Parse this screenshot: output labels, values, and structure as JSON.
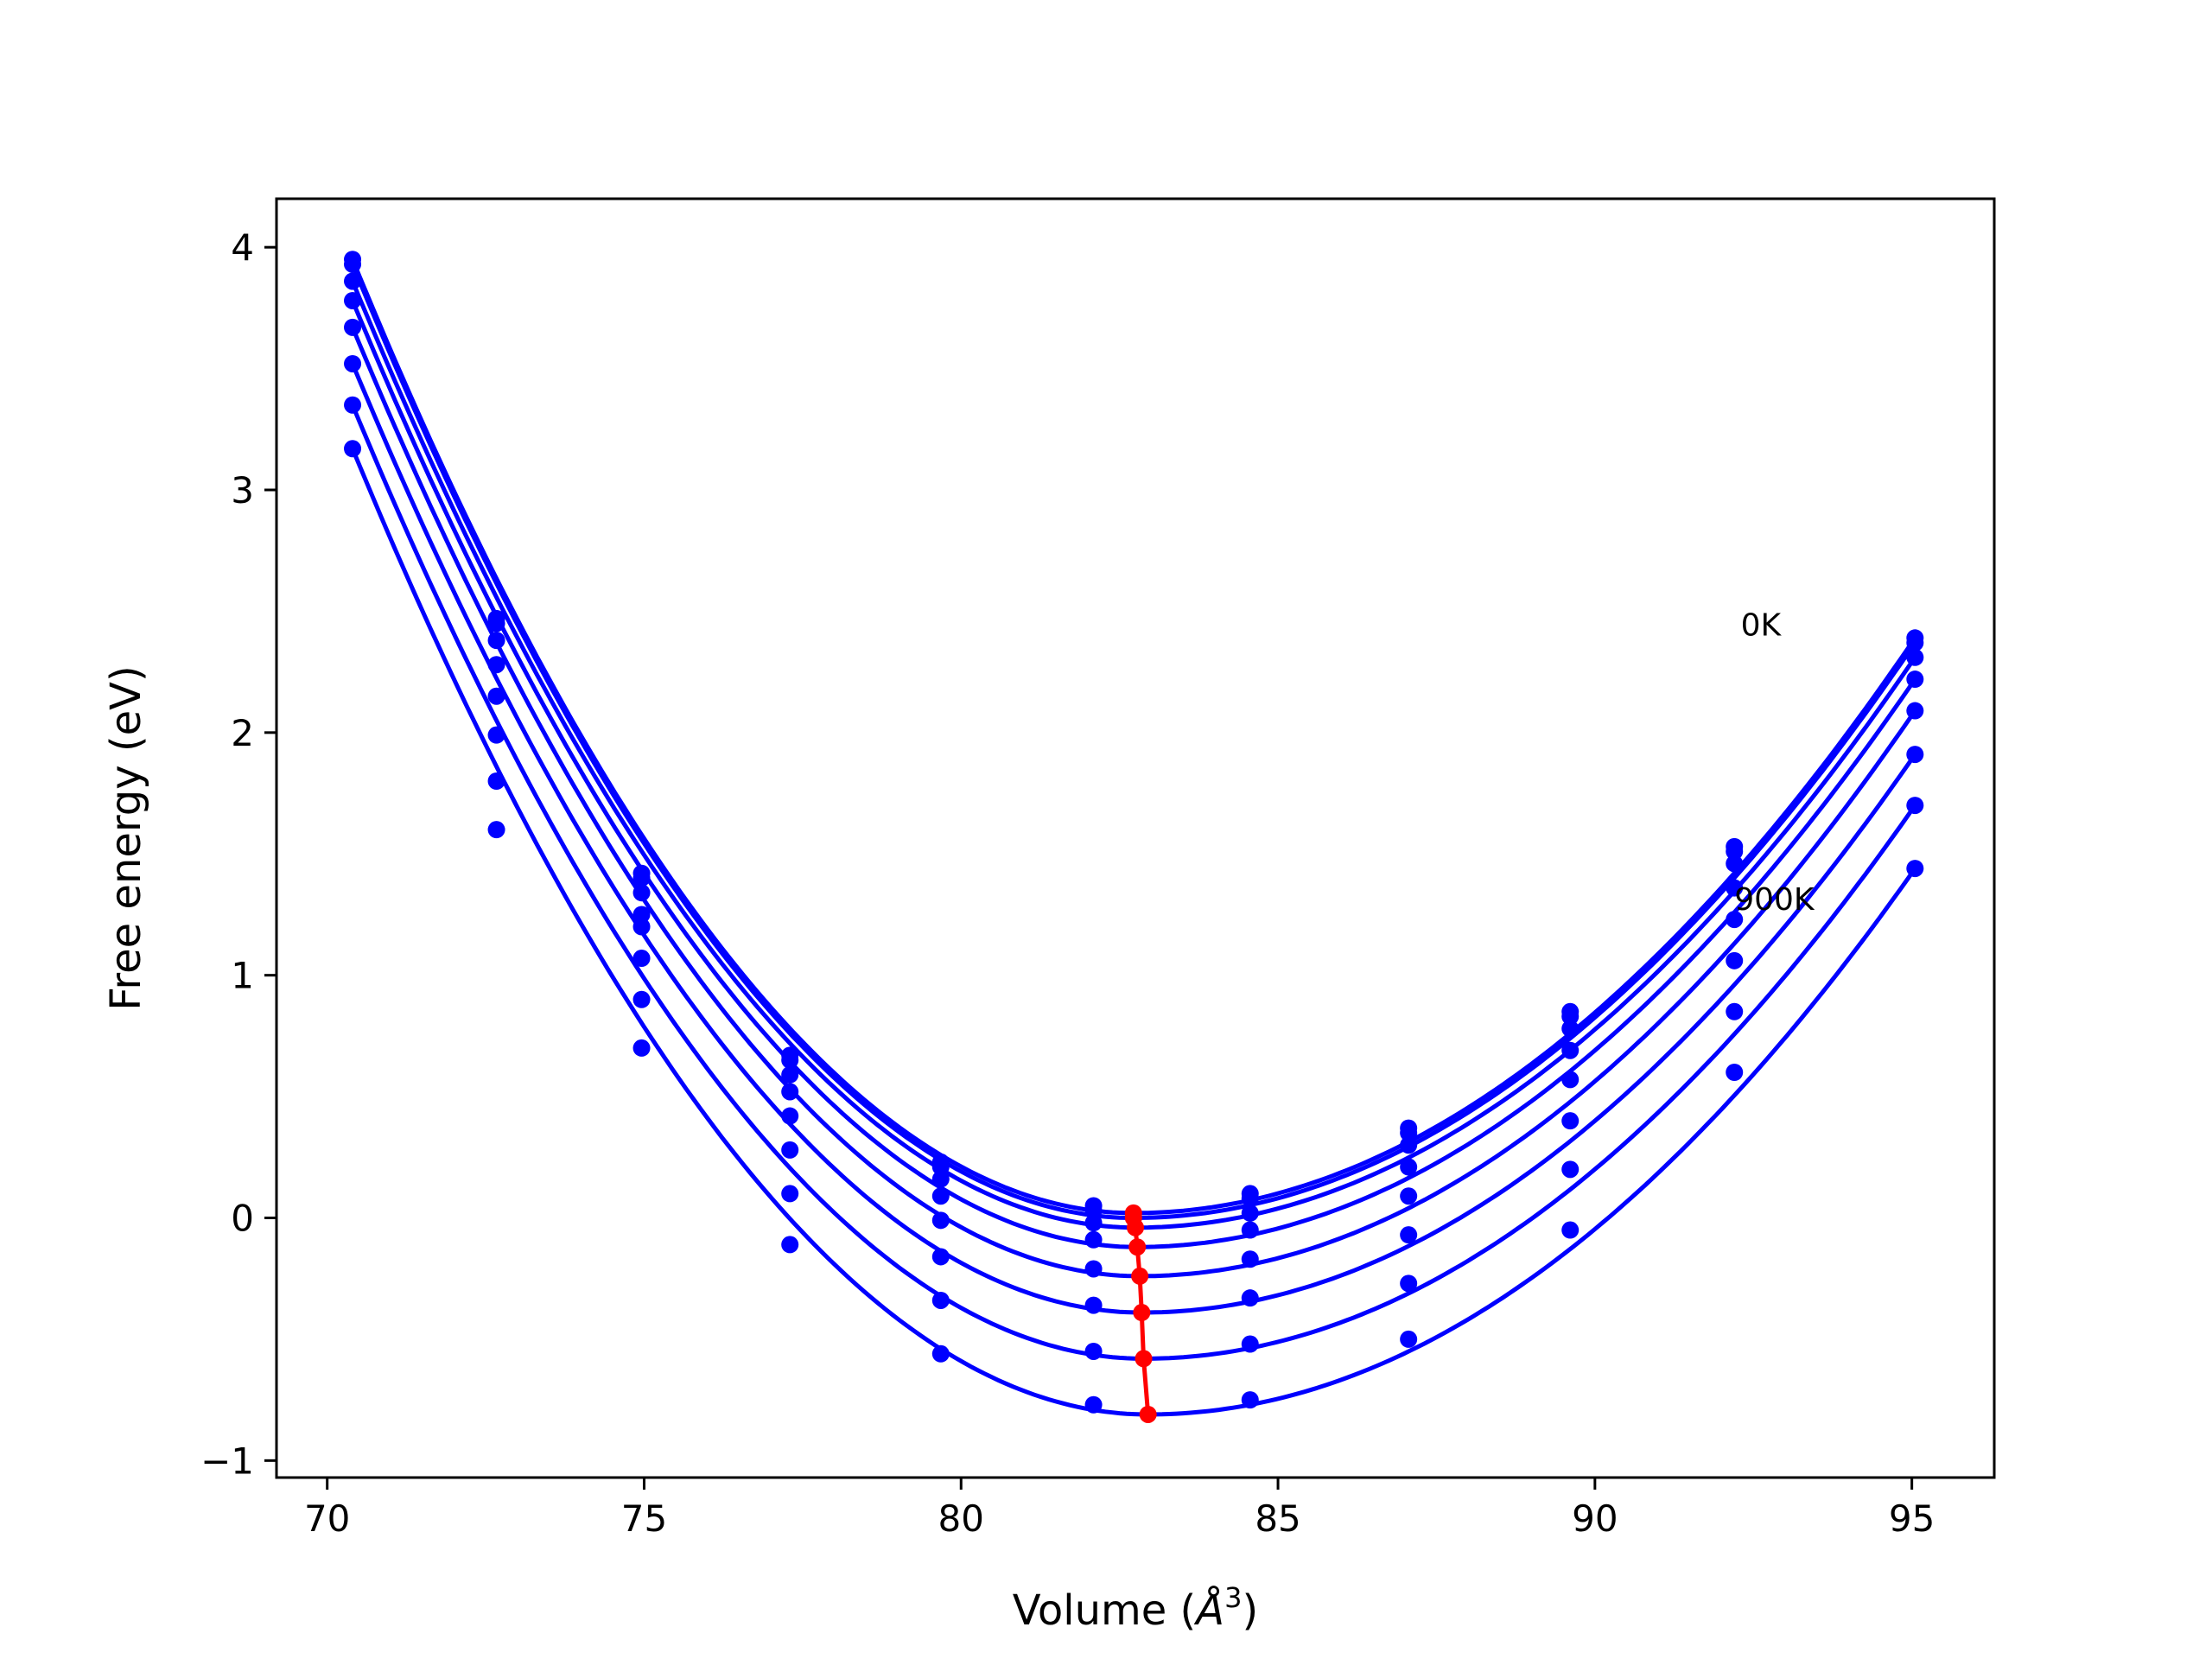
{
  "chart_data": {
    "type": "line",
    "xlabel_main": "Volume (",
    "xlabel_unit": "Å",
    "xlabel_sup": "3",
    "xlabel_close": ")",
    "ylabel": "Free energy (eV)",
    "xlim": [
      69.2,
      96.3
    ],
    "ylim": [
      -1.07,
      4.2
    ],
    "x_ticks": [
      70,
      75,
      80,
      85,
      90,
      95
    ],
    "x_tick_labels": [
      "70",
      "75",
      "80",
      "85",
      "90",
      "95"
    ],
    "y_ticks": [
      -1,
      0,
      1,
      2,
      3,
      4
    ],
    "y_tick_labels": [
      "−1",
      "0",
      "1",
      "2",
      "3",
      "4"
    ],
    "grid": false,
    "legend": false,
    "series_color": "#0000ff",
    "min_color": "#ff0000",
    "volumes": [
      70.4,
      72.67,
      74.96,
      77.3,
      79.68,
      82.09,
      84.56,
      87.06,
      89.61,
      92.2,
      95.05
    ],
    "series": [
      {
        "values": [
          3.95,
          2.47,
          1.42,
          0.67,
          0.23,
          0.05,
          0.1,
          0.37,
          0.85,
          1.53,
          2.39
        ],
        "min": [
          82.72,
          0.02
        ]
      },
      {
        "values": [
          3.93,
          2.45,
          1.4,
          0.65,
          0.21,
          0.03,
          0.08,
          0.35,
          0.83,
          1.51,
          2.37
        ],
        "min": [
          82.72,
          0.0
        ]
      },
      {
        "values": [
          3.86,
          2.38,
          1.34,
          0.59,
          0.16,
          -0.02,
          0.02,
          0.3,
          0.78,
          1.46,
          2.31
        ],
        "min": [
          82.75,
          -0.04
        ]
      },
      {
        "values": [
          3.78,
          2.28,
          1.25,
          0.52,
          0.09,
          -0.09,
          -0.05,
          0.21,
          0.69,
          1.36,
          2.22
        ],
        "min": [
          82.78,
          -0.12
        ]
      },
      {
        "values": [
          3.67,
          2.15,
          1.2,
          0.42,
          -0.01,
          -0.21,
          -0.17,
          0.09,
          0.57,
          1.23,
          2.09
        ],
        "min": [
          82.82,
          -0.24
        ]
      },
      {
        "values": [
          3.52,
          1.99,
          1.07,
          0.28,
          -0.16,
          -0.36,
          -0.33,
          -0.07,
          0.4,
          1.06,
          1.91
        ],
        "min": [
          82.85,
          -0.39
        ]
      },
      {
        "values": [
          3.35,
          1.8,
          0.9,
          0.1,
          -0.34,
          -0.55,
          -0.52,
          -0.27,
          0.2,
          0.85,
          1.7
        ],
        "min": [
          82.88,
          -0.58
        ]
      },
      {
        "values": [
          3.17,
          1.6,
          0.7,
          -0.11,
          -0.56,
          -0.77,
          -0.75,
          -0.5,
          -0.05,
          0.6,
          1.44
        ],
        "min": [
          82.95,
          -0.81
        ]
      }
    ],
    "annotations": [
      {
        "text": "0K",
        "x": 92.3,
        "y": 2.4
      },
      {
        "text": "900K",
        "x": 92.2,
        "y": 1.27
      }
    ]
  }
}
